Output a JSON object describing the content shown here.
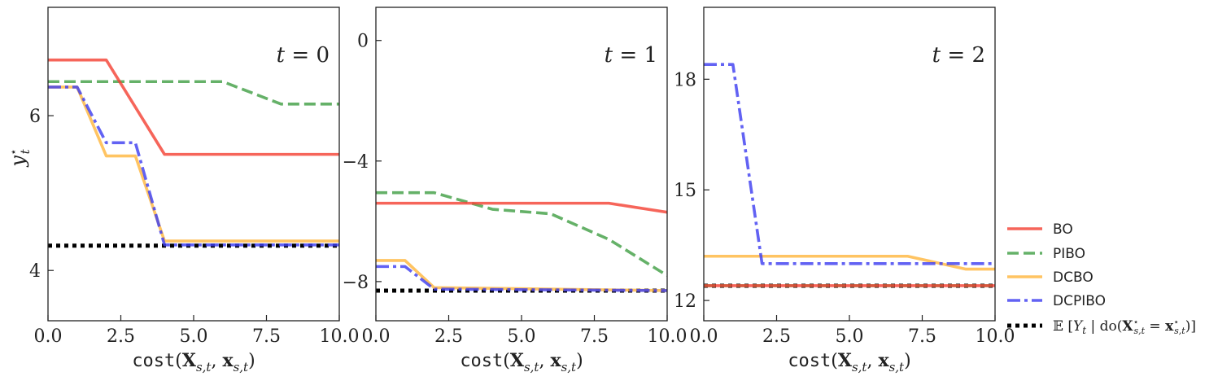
{
  "chart_data": [
    {
      "type": "line",
      "annotation": "t = 0",
      "xlabel": "cost(X_{s,t}, x_{s,t})",
      "ylabel": "y*_t",
      "xlim": [
        0,
        10
      ],
      "ylim": [
        3.35,
        7.4
      ],
      "xticks": [
        0.0,
        2.5,
        5.0,
        7.5,
        10.0
      ],
      "xtick_labels": [
        "0.0",
        "2.5",
        "5.0",
        "7.5",
        "10.0"
      ],
      "yticks": [
        4,
        6
      ],
      "ytick_labels": [
        "4",
        "6"
      ],
      "series": [
        {
          "name": "BO",
          "x": [
            0,
            2,
            4,
            10
          ],
          "y": [
            6.72,
            6.72,
            5.5,
            5.5
          ]
        },
        {
          "name": "PIBO",
          "x": [
            0,
            6,
            8,
            10
          ],
          "y": [
            6.44,
            6.44,
            6.15,
            6.15
          ]
        },
        {
          "name": "DCBO",
          "x": [
            0,
            1,
            2,
            3,
            4,
            10
          ],
          "y": [
            6.37,
            6.37,
            5.48,
            5.48,
            4.38,
            4.38
          ]
        },
        {
          "name": "DCPIBO",
          "x": [
            0,
            1,
            2,
            3,
            4,
            10
          ],
          "y": [
            6.37,
            6.37,
            5.65,
            5.65,
            4.33,
            4.33
          ]
        },
        {
          "name": "E[Y_t | do(X*_{s,t} = x*_{s,t})]",
          "x": [
            0,
            10
          ],
          "y": [
            4.32,
            4.32
          ]
        }
      ]
    },
    {
      "type": "line",
      "annotation": "t = 1",
      "xlabel": "cost(X_{s,t}, x_{s,t})",
      "ylabel": "",
      "xlim": [
        0,
        10
      ],
      "ylim": [
        -9.3,
        1.1
      ],
      "xticks": [
        0.0,
        2.5,
        5.0,
        7.5,
        10.0
      ],
      "xtick_labels": [
        "0.0",
        "2.5",
        "5.0",
        "7.5",
        "10.0"
      ],
      "yticks": [
        0,
        -4,
        -8
      ],
      "ytick_labels": [
        "0",
        "−4",
        "−8"
      ],
      "series": [
        {
          "name": "BO",
          "x": [
            0,
            8,
            10
          ],
          "y": [
            -5.4,
            -5.4,
            -5.7
          ]
        },
        {
          "name": "PIBO",
          "x": [
            0,
            2,
            4,
            6,
            8,
            10
          ],
          "y": [
            -5.05,
            -5.05,
            -5.6,
            -5.75,
            -6.6,
            -7.8
          ]
        },
        {
          "name": "DCBO",
          "x": [
            0,
            1,
            2,
            10
          ],
          "y": [
            -7.3,
            -7.3,
            -8.2,
            -8.3
          ]
        },
        {
          "name": "DCPIBO",
          "x": [
            0,
            1,
            2,
            10
          ],
          "y": [
            -7.5,
            -7.5,
            -8.25,
            -8.3
          ]
        },
        {
          "name": "E[Y_t | do(X*_{s,t} = x*_{s,t})]",
          "x": [
            0,
            10
          ],
          "y": [
            -8.3,
            -8.3
          ]
        }
      ]
    },
    {
      "type": "line",
      "annotation": "t = 2",
      "xlabel": "cost(X_{s,t}, x_{s,t})",
      "ylabel": "",
      "xlim": [
        0,
        10
      ],
      "ylim": [
        11.45,
        19.95
      ],
      "xticks": [
        0.0,
        2.5,
        5.0,
        7.5,
        10.0
      ],
      "xtick_labels": [
        "0.0",
        "2.5",
        "5.0",
        "7.5",
        "10.0"
      ],
      "yticks": [
        12,
        15,
        18
      ],
      "ytick_labels": [
        "12",
        "15",
        "18"
      ],
      "series": [
        {
          "name": "BO",
          "x": [
            0,
            10
          ],
          "y": [
            12.4,
            12.4
          ]
        },
        {
          "name": "PIBO",
          "x": [
            0,
            10
          ],
          "y": [
            12.4,
            12.4
          ]
        },
        {
          "name": "DCBO",
          "x": [
            0,
            7,
            9,
            10
          ],
          "y": [
            13.2,
            13.2,
            12.85,
            12.85
          ]
        },
        {
          "name": "DCPIBO",
          "x": [
            0,
            1,
            2,
            10
          ],
          "y": [
            18.4,
            18.4,
            13.0,
            13.0
          ]
        },
        {
          "name": "E[Y_t | do(X*_{s,t} = x*_{s,t})]",
          "x": [
            0,
            10
          ],
          "y": [
            12.4,
            12.4
          ]
        }
      ]
    }
  ],
  "legend": {
    "placement": "right-bottom",
    "entries": [
      {
        "label": "BO",
        "color": "#f44336",
        "style": "solid"
      },
      {
        "label": "PIBO",
        "color": "#43a047",
        "style": "dashed"
      },
      {
        "label": "DCBO",
        "color": "#ffb740",
        "style": "solid"
      },
      {
        "label": "DCPIBO",
        "color": "#3f3ff0",
        "style": "dashdot"
      },
      {
        "label": "E[Y_t | do(X*_{s,t} = x*_{s,t})]",
        "color": "#000000",
        "style": "dotted"
      }
    ]
  },
  "colors": {
    "BO": "#f44336",
    "PIBO": "#43a047",
    "DCBO": "#ffb740",
    "DCPIBO": "#3f3ff0",
    "E[Y_t | do(X*_{s,t} = x*_{s,t})]": "#000000"
  }
}
